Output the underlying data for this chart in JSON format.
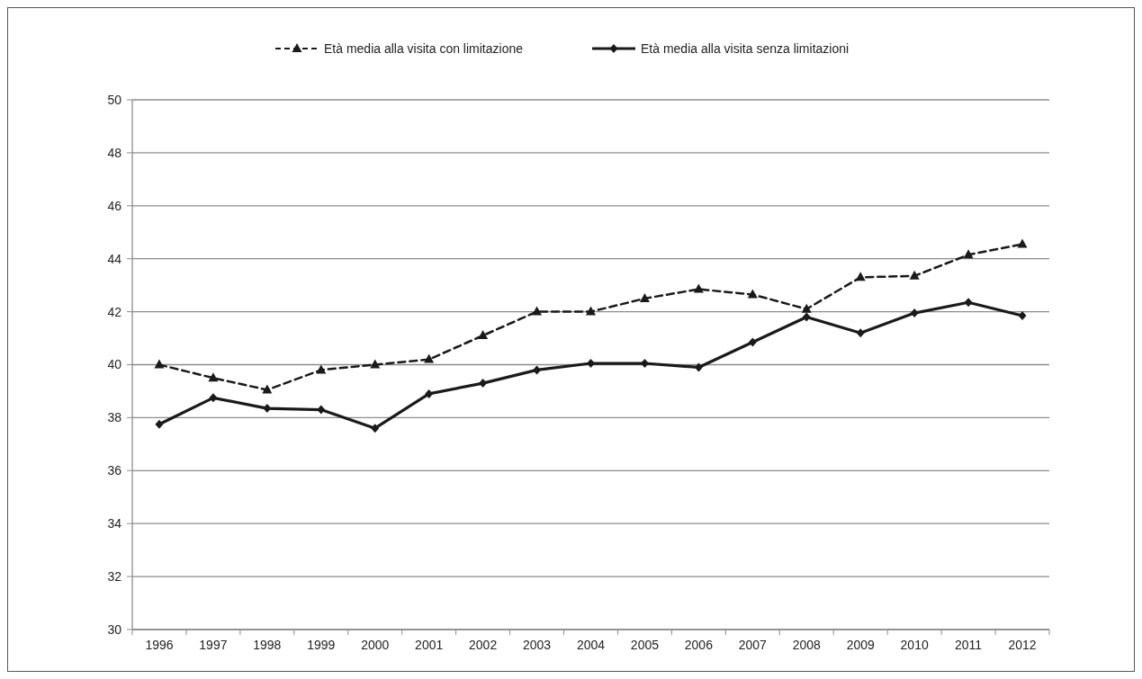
{
  "chart_data": {
    "type": "line",
    "categories": [
      "1996",
      "1997",
      "1998",
      "1999",
      "2000",
      "2001",
      "2002",
      "2003",
      "2004",
      "2005",
      "2006",
      "2007",
      "2008",
      "2009",
      "2010",
      "2011",
      "2012"
    ],
    "series": [
      {
        "name": "Età media alla visita con limitazione",
        "color": "#1a1a1a",
        "line_style": "dashed",
        "marker": "triangle",
        "values": [
          40.0,
          39.5,
          39.05,
          39.8,
          40.0,
          40.2,
          41.1,
          42.0,
          42.0,
          42.5,
          42.85,
          42.65,
          42.1,
          43.3,
          43.35,
          44.15,
          44.55
        ]
      },
      {
        "name": "Età media alla visita senza limitazioni",
        "color": "#1a1a1a",
        "line_style": "solid",
        "marker": "diamond",
        "values": [
          37.75,
          38.75,
          38.35,
          38.3,
          37.6,
          38.9,
          39.3,
          39.8,
          40.05,
          40.05,
          39.9,
          40.85,
          41.8,
          41.2,
          41.95,
          42.35,
          41.85
        ]
      }
    ],
    "ylim": [
      30,
      50
    ],
    "yticks": [
      30,
      32,
      34,
      36,
      38,
      40,
      42,
      44,
      46,
      48,
      50
    ],
    "grid": "y",
    "legend": "top"
  }
}
